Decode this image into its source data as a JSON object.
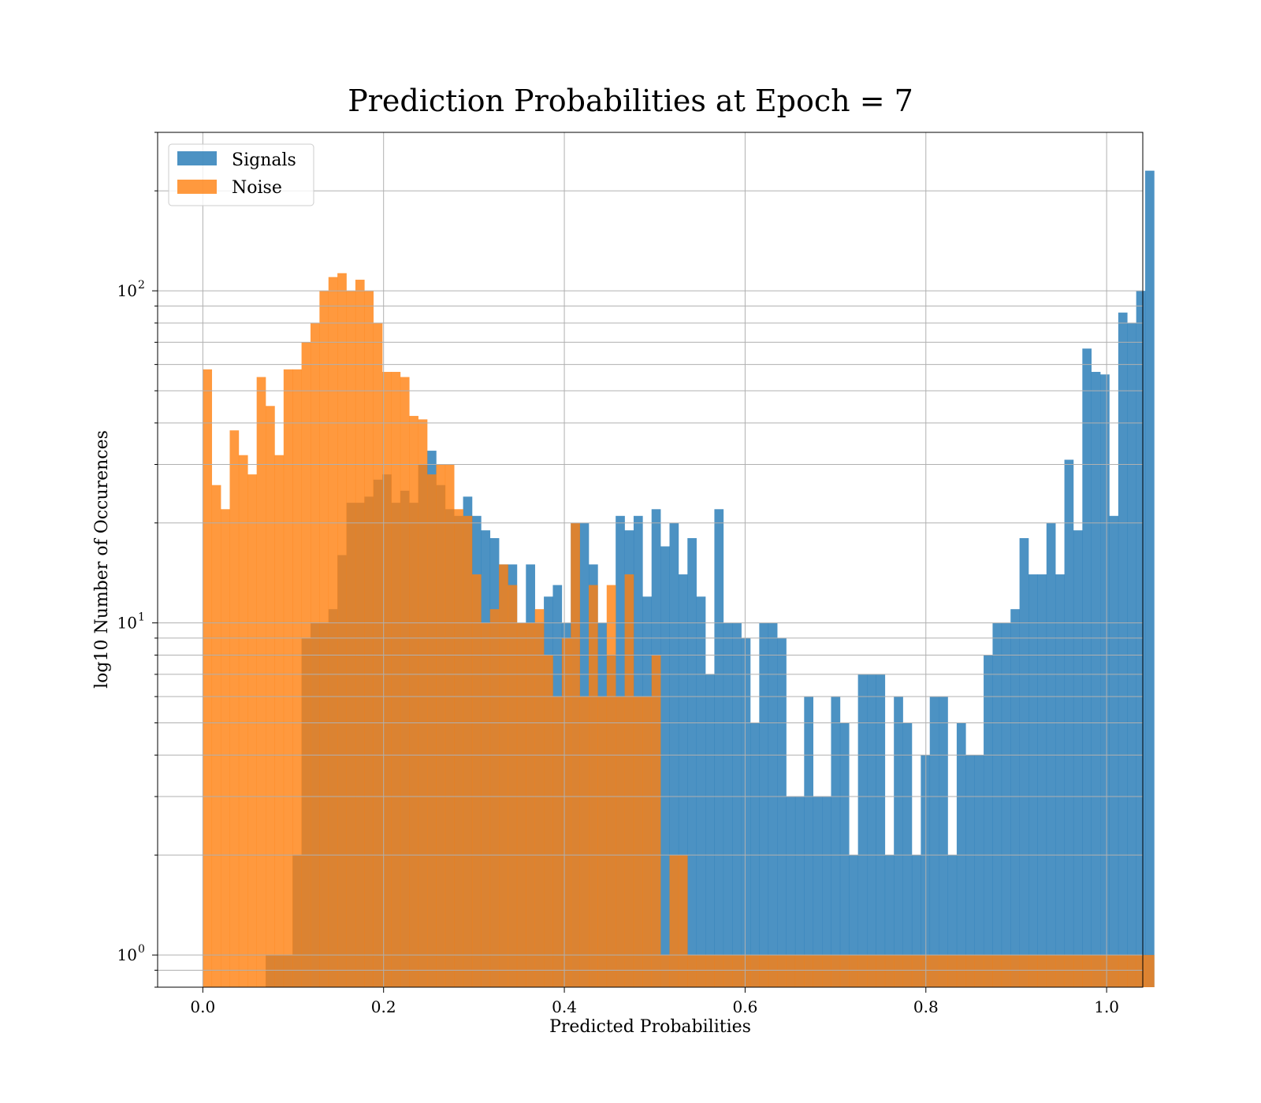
{
  "chart_data": {
    "type": "bar",
    "title": "Prediction Probabilities at Epoch = 7",
    "xlabel": "Predicted Probabilities",
    "ylabel": "log10 Number of Occurences",
    "xlim": [
      -0.05,
      1.04
    ],
    "ylim": [
      0.8,
      300
    ],
    "yscale": "log",
    "grid": true,
    "legend_position": "top-left",
    "x_ticks": [
      0.0,
      0.2,
      0.4,
      0.6,
      0.8,
      1.0
    ],
    "x_tick_labels": [
      "0.0",
      "0.2",
      "0.4",
      "0.6",
      "0.8",
      "1.0"
    ],
    "y_ticks": [
      1,
      10,
      100
    ],
    "y_tick_labels": [
      {
        "base": "10",
        "exp": "0"
      },
      {
        "base": "10",
        "exp": "1"
      },
      {
        "base": "10",
        "exp": "2"
      }
    ],
    "bin_start": 0.0,
    "bin_width": 0.00993,
    "series": [
      {
        "name": "Signals",
        "color": "#1f77b4",
        "counts": [
          0,
          0,
          0,
          0,
          0,
          0,
          0,
          1,
          1,
          1,
          2,
          9,
          10,
          10,
          11,
          16,
          23,
          23,
          24,
          27,
          28,
          23,
          25,
          23,
          30,
          33,
          26,
          22,
          21,
          24,
          21,
          19,
          18,
          15,
          15,
          10,
          15,
          10,
          12,
          13,
          10,
          20,
          20,
          15,
          10,
          8,
          21,
          19,
          21,
          12,
          22,
          17,
          20,
          14,
          18,
          12,
          7,
          22,
          10,
          10,
          9,
          5,
          10,
          10,
          9,
          3,
          3,
          6,
          3,
          3,
          6,
          5,
          2,
          7,
          7,
          7,
          2,
          6,
          5,
          2,
          4,
          6,
          6,
          2,
          5,
          4,
          4,
          8,
          10,
          10,
          11,
          18,
          14,
          14,
          20,
          14,
          31,
          19,
          67,
          57,
          56,
          21,
          86,
          80,
          100,
          230
        ],
        "visible_from_bin": 0
      },
      {
        "name": "Noise",
        "color": "#ff7f0e",
        "counts": [
          58,
          26,
          22,
          38,
          32,
          28,
          55,
          45,
          32,
          58,
          58,
          70,
          80,
          100,
          110,
          113,
          100,
          108,
          100,
          80,
          57,
          57,
          55,
          42,
          41,
          28,
          30,
          30,
          22,
          21,
          14,
          10,
          11,
          15,
          13,
          10,
          10,
          11,
          8,
          6,
          9,
          20,
          6,
          13,
          6,
          13,
          6,
          14,
          6,
          6,
          8,
          1,
          2,
          2,
          1,
          1,
          1,
          1,
          1,
          1,
          1,
          1,
          1,
          1,
          1,
          1,
          1,
          1,
          1,
          1,
          1,
          1,
          1,
          1,
          1,
          1,
          1,
          1,
          1,
          1,
          1,
          1,
          1,
          1,
          1,
          1,
          1,
          1,
          1,
          1,
          1,
          1,
          1,
          1,
          1,
          1,
          1,
          1,
          1,
          1,
          1,
          1,
          1,
          1,
          1,
          1
        ],
        "visible_from_bin": 0
      }
    ]
  }
}
